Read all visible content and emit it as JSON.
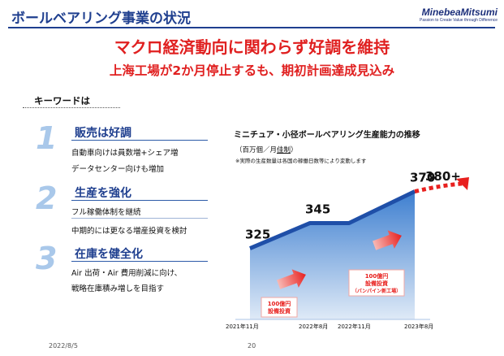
{
  "header": {
    "title": "ボールベアリング事業の状況",
    "logo_main": "MinebeaMitsumi",
    "logo_tagline": "Passion to Create Value through Difference"
  },
  "headline": {
    "line1": "マクロ経済動向に関わらず好調を維持",
    "line2": "上海工場が2か月停止するも、期初計画達成見込み"
  },
  "keywords": {
    "heading": "キーワードは",
    "items": [
      {
        "number": "1",
        "title": "販売は好調",
        "lines": [
          "自動車向けは員数増+シェア増",
          "データセンター向けも増加"
        ]
      },
      {
        "number": "2",
        "title": "生産を強化",
        "lines": [
          "フル稼働体制を継続",
          "中期的には更なる増産投資を検討"
        ]
      },
      {
        "number": "3",
        "title": "在庫を健全化",
        "lines": [
          "Air 出荷・Air 費用削減に向け、",
          "戦略在庫積み増しを目指す"
        ]
      }
    ]
  },
  "chart_data": {
    "type": "area",
    "title": "ミニチュア・小径ボールベアリング生産能力の推移",
    "unit_prefix": "（百万個／月",
    "unit_link": "佳制",
    "unit_suffix": "）",
    "note": "※実際の生産数量は各国の稼働日数等により変動します",
    "points": [
      {
        "x": "2021年11月",
        "y": 325,
        "label": "325"
      },
      {
        "x": "2022年8月",
        "y": 345,
        "label": "345"
      },
      {
        "x": "2022年11月",
        "y": 345,
        "label": ""
      },
      {
        "x": "2023年8月",
        "y": 370,
        "label": "370"
      }
    ],
    "forecast": {
      "label": "380+"
    },
    "annotations": [
      {
        "text_line1": "100億円",
        "text_line2": "設備投資",
        "text_line3": ""
      },
      {
        "text_line1": "100億円",
        "text_line2": "設備投資",
        "text_line3": "（バンパイン新工場）"
      }
    ],
    "colors": {
      "area_top": "#3e7fd0",
      "area_bottom": "#dfeaf7",
      "line": "#1f4fa8",
      "arrow": "#e8201e"
    }
  },
  "footer": {
    "date": "2022/8/5",
    "page": "20"
  }
}
